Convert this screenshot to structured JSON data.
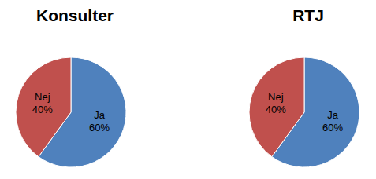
{
  "chart_data": [
    {
      "type": "pie",
      "title": "Konsulter",
      "categories": [
        "Ja",
        "Nej"
      ],
      "values": [
        60,
        40
      ],
      "value_labels": [
        "60%",
        "40%"
      ],
      "colors": [
        "#4f81bd",
        "#c0504d"
      ],
      "data_labels": true
    },
    {
      "type": "pie",
      "title": "RTJ",
      "categories": [
        "Ja",
        "Nej"
      ],
      "values": [
        60,
        40
      ],
      "value_labels": [
        "60%",
        "40%"
      ],
      "colors": [
        "#4f81bd",
        "#c0504d"
      ],
      "data_labels": true
    }
  ]
}
